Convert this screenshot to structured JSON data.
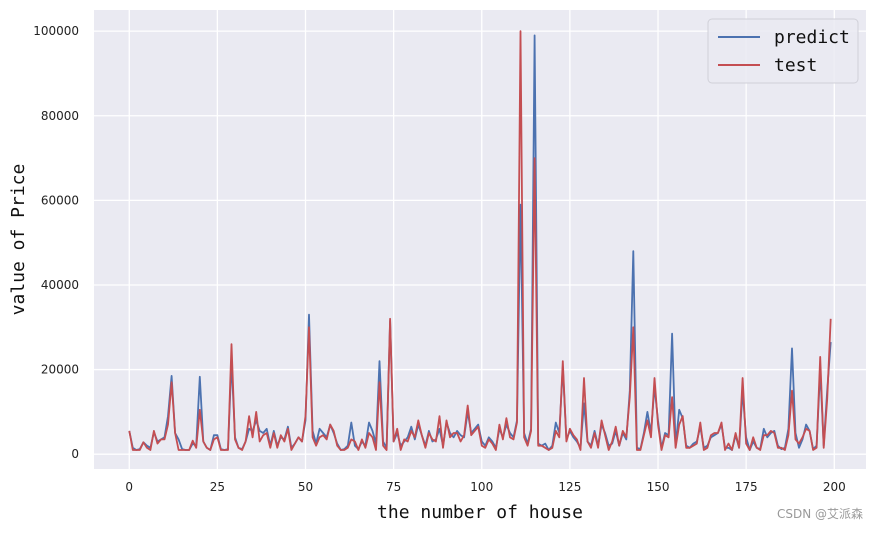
{
  "watermark": "CSDN @艾派森",
  "chart_data": {
    "type": "line",
    "xlabel": "the number of house",
    "ylabel": "value of Price",
    "xlim": [
      -10,
      209
    ],
    "ylim": [
      -3500,
      105000
    ],
    "xticks": [
      0,
      25,
      50,
      75,
      100,
      125,
      150,
      175,
      200
    ],
    "yticks": [
      0,
      20000,
      40000,
      60000,
      80000,
      100000
    ],
    "grid": true,
    "legend_position": "top-right",
    "colors": {
      "predict": "#4c72b0",
      "test": "#c44e52",
      "background": "#eaeaf2"
    },
    "x": [
      0,
      1,
      2,
      3,
      4,
      5,
      6,
      7,
      8,
      9,
      10,
      11,
      12,
      13,
      14,
      15,
      16,
      17,
      18,
      19,
      20,
      21,
      22,
      23,
      24,
      25,
      26,
      27,
      28,
      29,
      30,
      31,
      32,
      33,
      34,
      35,
      36,
      37,
      38,
      39,
      40,
      41,
      42,
      43,
      44,
      45,
      46,
      47,
      48,
      49,
      50,
      51,
      52,
      53,
      54,
      55,
      56,
      57,
      58,
      59,
      60,
      61,
      62,
      63,
      64,
      65,
      66,
      67,
      68,
      69,
      70,
      71,
      72,
      73,
      74,
      75,
      76,
      77,
      78,
      79,
      80,
      81,
      82,
      83,
      84,
      85,
      86,
      87,
      88,
      89,
      90,
      91,
      92,
      93,
      94,
      95,
      96,
      97,
      98,
      99,
      100,
      101,
      102,
      103,
      104,
      105,
      106,
      107,
      108,
      109,
      110,
      111,
      112,
      113,
      114,
      115,
      116,
      117,
      118,
      119,
      120,
      121,
      122,
      123,
      124,
      125,
      126,
      127,
      128,
      129,
      130,
      131,
      132,
      133,
      134,
      135,
      136,
      137,
      138,
      139,
      140,
      141,
      142,
      143,
      144,
      145,
      146,
      147,
      148,
      149,
      150,
      151,
      152,
      153,
      154,
      155,
      156,
      157,
      158,
      159,
      160,
      161,
      162,
      163,
      164,
      165,
      166,
      167,
      168,
      169,
      170,
      171,
      172,
      173,
      174,
      175,
      176,
      177,
      178,
      179,
      180,
      181,
      182,
      183,
      184,
      185,
      186,
      187,
      188,
      189,
      190,
      191,
      192,
      193,
      194,
      195,
      196,
      197,
      198,
      199
    ],
    "series": [
      {
        "name": "predict",
        "values": [
          5500,
          1500,
          1000,
          1200,
          2800,
          2000,
          1500,
          5200,
          3000,
          3500,
          4000,
          9000,
          18500,
          5000,
          3500,
          1200,
          1000,
          1000,
          2500,
          2000,
          18300,
          3000,
          1500,
          1000,
          4500,
          4500,
          1200,
          1000,
          1200,
          22000,
          4000,
          1500,
          1200,
          3000,
          6000,
          5500,
          8000,
          5500,
          5000,
          6000,
          2000,
          5500,
          2000,
          4000,
          3500,
          6500,
          1500,
          2500,
          4000,
          3000,
          8000,
          33000,
          5500,
          2500,
          6000,
          5000,
          4000,
          7000,
          5000,
          2500,
          1000,
          1200,
          2000,
          7500,
          2000,
          1200,
          3000,
          2000,
          7500,
          5500,
          2500,
          22000,
          3000,
          1500,
          31500,
          3000,
          5000,
          2000,
          3000,
          4000,
          6500,
          3500,
          7000,
          4500,
          2000,
          5500,
          3000,
          3500,
          6000,
          2000,
          7500,
          5000,
          4000,
          5500,
          4500,
          4000,
          10000,
          5000,
          6000,
          7000,
          3000,
          2000,
          4000,
          3000,
          1500,
          6000,
          4000,
          7000,
          5000,
          4000,
          8000,
          59000,
          5000,
          2500,
          6000,
          99000,
          2500,
          2000,
          2500,
          1000,
          2000,
          7500,
          5000,
          20500,
          3500,
          5500,
          4000,
          3000,
          1500,
          12000,
          3000,
          2000,
          5500,
          2000,
          7000,
          5000,
          2000,
          2500,
          5500,
          2000,
          5000,
          3500,
          15000,
          48000,
          1500,
          1200,
          5000,
          10000,
          5000,
          16000,
          8000,
          1500,
          5000,
          4500,
          28500,
          2000,
          10500,
          8500,
          2000,
          1500,
          2500,
          3000,
          6500,
          1500,
          2000,
          4000,
          4500,
          5000,
          7000,
          1500,
          1500,
          1000,
          4500,
          1500,
          15000,
          4000,
          1000,
          3000,
          1500,
          1200,
          6000,
          4000,
          5000,
          5500,
          2000,
          1200,
          1500,
          6000,
          25000,
          5000,
          1500,
          3500,
          7000,
          5500,
          1200,
          2000,
          20000,
          2000,
          15000,
          26500
        ]
      },
      {
        "name": "test",
        "values": [
          5500,
          1000,
          1000,
          1000,
          2800,
          1500,
          1000,
          5500,
          2500,
          3500,
          3500,
          7000,
          17000,
          5000,
          1000,
          1000,
          1000,
          1000,
          3200,
          1500,
          10500,
          3000,
          1500,
          1000,
          3500,
          4000,
          1000,
          1000,
          1000,
          26000,
          3500,
          1500,
          1000,
          3000,
          9000,
          4000,
          10000,
          3000,
          4500,
          5000,
          1500,
          5000,
          1500,
          4500,
          3000,
          6000,
          1000,
          2500,
          4000,
          3000,
          9000,
          30000,
          4000,
          2000,
          4000,
          4500,
          3500,
          7000,
          5500,
          2000,
          1000,
          1000,
          1500,
          3500,
          3000,
          1000,
          3500,
          1500,
          5000,
          4000,
          1000,
          17000,
          2000,
          1000,
          32000,
          3000,
          6000,
          1000,
          3500,
          3000,
          5500,
          4000,
          8000,
          4500,
          1500,
          5000,
          3500,
          3000,
          9000,
          1500,
          8000,
          4000,
          5000,
          5000,
          3000,
          4500,
          11500,
          4500,
          5500,
          6500,
          2000,
          1500,
          3500,
          2500,
          1000,
          7000,
          3500,
          8500,
          4000,
          3500,
          7500,
          100000,
          4000,
          2000,
          5500,
          70000,
          2000,
          2000,
          1500,
          1000,
          1500,
          5500,
          4000,
          22000,
          3000,
          6000,
          4500,
          3500,
          1000,
          18000,
          3000,
          1500,
          5000,
          1500,
          8000,
          4500,
          1000,
          3000,
          6500,
          2000,
          5500,
          4000,
          13500,
          30000,
          1000,
          1000,
          4500,
          8000,
          4000,
          18000,
          7000,
          1000,
          4500,
          4000,
          13500,
          1500,
          7000,
          9000,
          1500,
          1500,
          2000,
          2500,
          7500,
          1000,
          1500,
          4500,
          5000,
          5000,
          7500,
          1000,
          2500,
          1000,
          5000,
          1500,
          18000,
          2500,
          1000,
          4000,
          1500,
          1000,
          4500,
          4500,
          5500,
          5000,
          1500,
          1500,
          1000,
          4500,
          15000,
          3500,
          2500,
          4000,
          6000,
          5500,
          1000,
          1500,
          23000,
          1500,
          13000,
          32000
        ]
      }
    ]
  }
}
